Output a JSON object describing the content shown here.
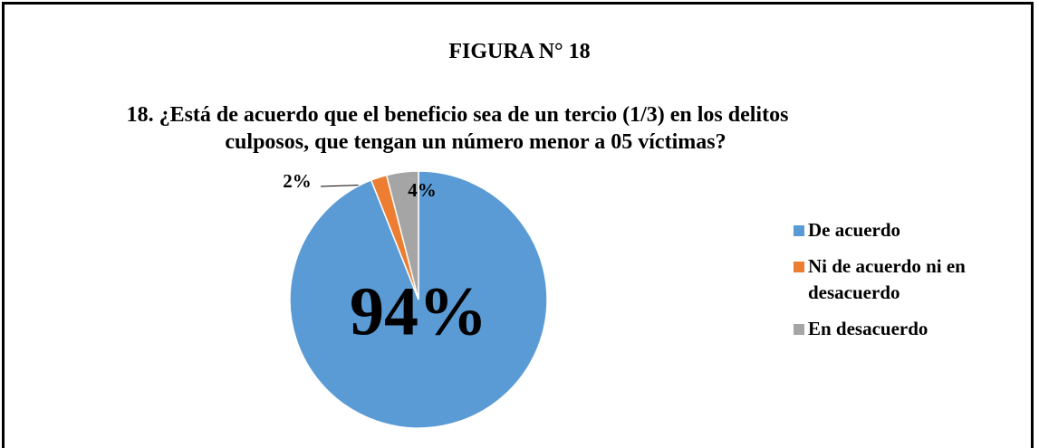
{
  "chart_data": {
    "type": "pie",
    "title": "FIGURA N° 18",
    "subtitle": "18. ¿Está de acuerdo que el beneficio sea de un tercio (1/3) en los delitos culposos, que tengan un número menor a 05 víctimas?",
    "categories": [
      "De acuerdo",
      "Ni de acuerdo ni en desacuerdo",
      "En desacuerdo"
    ],
    "values": [
      94,
      2,
      4
    ],
    "value_labels": [
      "94%",
      "2%",
      "4%"
    ],
    "colors": [
      "#5b9bd5",
      "#ed7d31",
      "#a5a5a5"
    ],
    "legend": "right"
  }
}
